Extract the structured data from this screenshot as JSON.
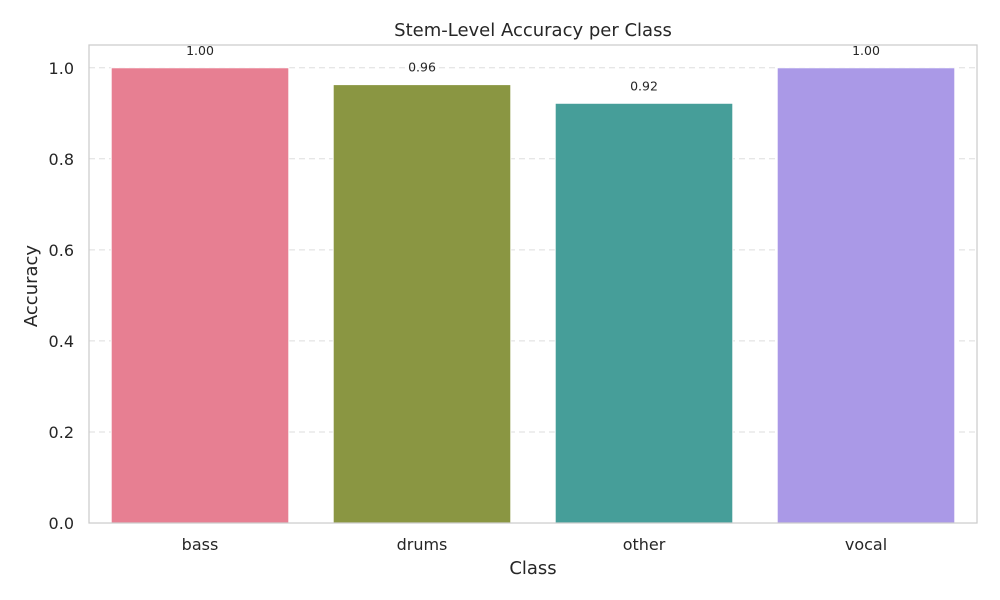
{
  "chart_data": {
    "type": "bar",
    "title": "Stem-Level Accuracy per Class",
    "xlabel": "Class",
    "ylabel": "Accuracy",
    "categories": [
      "bass",
      "drums",
      "other",
      "vocal"
    ],
    "values": [
      1.0,
      0.963,
      0.922,
      1.0
    ],
    "data_labels": [
      "1.00",
      "0.96",
      "0.92",
      "1.00"
    ],
    "colors": [
      "#e77f92",
      "#8a9642",
      "#469e99",
      "#aa99e7"
    ],
    "ylim": [
      0,
      1.05
    ],
    "yticks": [
      0.0,
      0.2,
      0.4,
      0.6,
      0.8,
      1.0
    ],
    "ytick_labels": [
      "0.0",
      "0.2",
      "0.4",
      "0.6",
      "0.8",
      "1.0"
    ],
    "grid": "y, dashed",
    "legend": "none"
  }
}
